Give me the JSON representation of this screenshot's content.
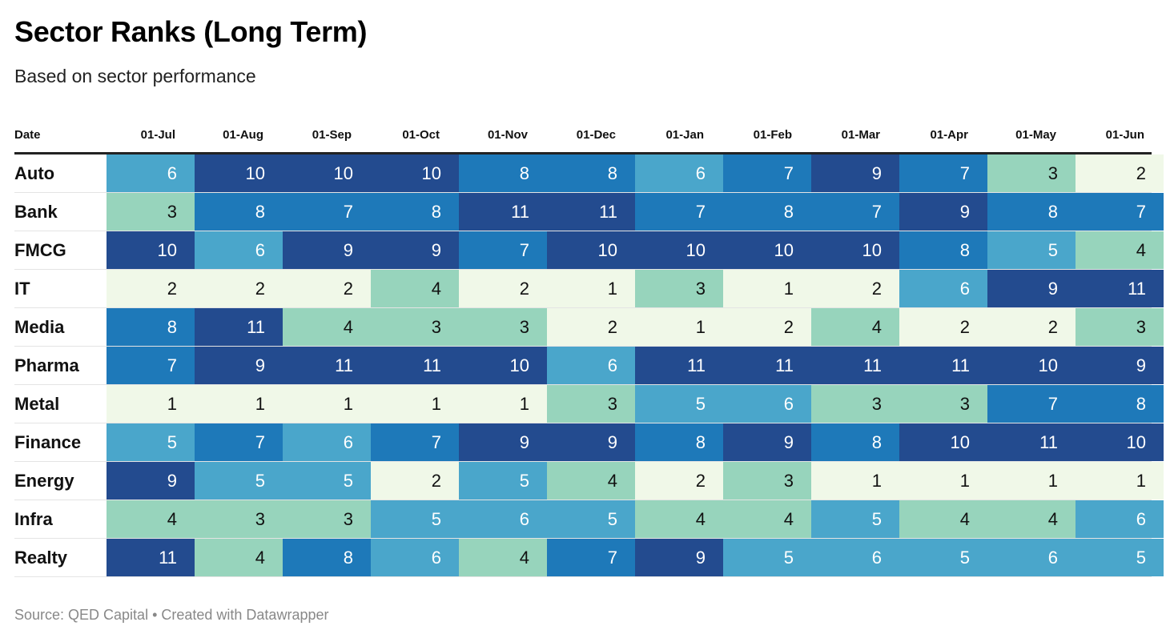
{
  "header": {
    "title": "Sector Ranks (Long Term)",
    "subtitle": "Based on sector performance"
  },
  "footer": {
    "source": "Source: QED Capital • Created with Datawrapper"
  },
  "colors": {
    "scale": [
      "#f0f8e8",
      "#f0f8e8",
      "#97d4bc",
      "#97d4bc",
      "#4aa6cb",
      "#4aa6cb",
      "#1e79b9",
      "#1e79b9",
      "#234b8f",
      "#234b8f",
      "#234b8f"
    ],
    "dark_text": "#111111",
    "light_text": "#ffffff"
  },
  "chart_data": {
    "type": "table",
    "row_header": "Date",
    "columns": [
      "01-Jul",
      "01-Aug",
      "01-Sep",
      "01-Oct",
      "01-Nov",
      "01-Dec",
      "01-Jan",
      "01-Feb",
      "01-Mar",
      "01-Apr",
      "01-May",
      "01-Jun"
    ],
    "rows": [
      {
        "label": "Auto",
        "values": [
          6,
          10,
          10,
          10,
          8,
          8,
          6,
          7,
          9,
          7,
          3,
          2
        ]
      },
      {
        "label": "Bank",
        "values": [
          3,
          8,
          7,
          8,
          11,
          11,
          7,
          8,
          7,
          9,
          8,
          7
        ]
      },
      {
        "label": "FMCG",
        "values": [
          10,
          6,
          9,
          9,
          7,
          10,
          10,
          10,
          10,
          8,
          5,
          4
        ]
      },
      {
        "label": "IT",
        "values": [
          2,
          2,
          2,
          4,
          2,
          1,
          3,
          1,
          2,
          6,
          9,
          11
        ]
      },
      {
        "label": "Media",
        "values": [
          8,
          11,
          4,
          3,
          3,
          2,
          1,
          2,
          4,
          2,
          2,
          3
        ]
      },
      {
        "label": "Pharma",
        "values": [
          7,
          9,
          11,
          11,
          10,
          6,
          11,
          11,
          11,
          11,
          10,
          9
        ]
      },
      {
        "label": "Metal",
        "values": [
          1,
          1,
          1,
          1,
          1,
          3,
          5,
          6,
          3,
          3,
          7,
          8
        ]
      },
      {
        "label": "Finance",
        "values": [
          5,
          7,
          6,
          7,
          9,
          9,
          8,
          9,
          8,
          10,
          11,
          10
        ]
      },
      {
        "label": "Energy",
        "values": [
          9,
          5,
          5,
          2,
          5,
          4,
          2,
          3,
          1,
          1,
          1,
          1
        ]
      },
      {
        "label": "Infra",
        "values": [
          4,
          3,
          3,
          5,
          6,
          5,
          4,
          4,
          5,
          4,
          4,
          6
        ]
      },
      {
        "label": "Realty",
        "values": [
          11,
          4,
          8,
          6,
          4,
          7,
          9,
          5,
          6,
          5,
          6,
          5
        ]
      }
    ],
    "value_range": [
      1,
      11
    ]
  }
}
